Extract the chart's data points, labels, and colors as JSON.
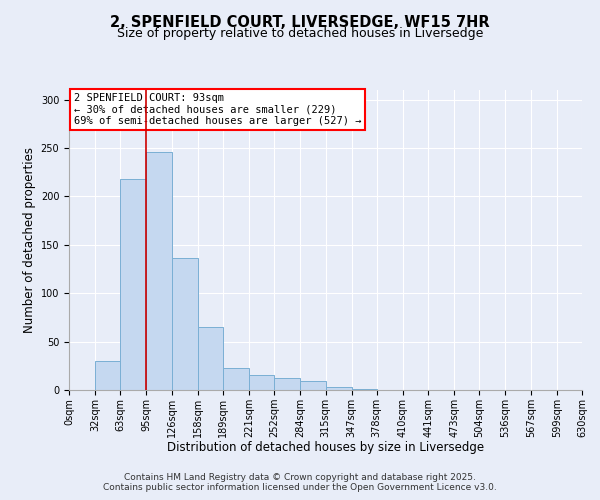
{
  "title": "2, SPENFIELD COURT, LIVERSEDGE, WF15 7HR",
  "subtitle": "Size of property relative to detached houses in Liversedge",
  "xlabel": "Distribution of detached houses by size in Liversedge",
  "ylabel": "Number of detached properties",
  "bar_edges": [
    0,
    32,
    63,
    95,
    126,
    158,
    189,
    221,
    252,
    284,
    315,
    347,
    378,
    410,
    441,
    473,
    504,
    536,
    567,
    599,
    630
  ],
  "bar_heights": [
    0,
    30,
    218,
    246,
    136,
    65,
    23,
    15,
    12,
    9,
    3,
    1,
    0,
    0,
    0,
    0,
    0,
    0,
    0,
    0
  ],
  "bar_color": "#c5d8f0",
  "bar_edge_color": "#7aafd4",
  "bar_linewidth": 0.7,
  "vline_x": 95,
  "vline_color": "#cc0000",
  "vline_linewidth": 1.2,
  "annotation_title": "2 SPENFIELD COURT: 93sqm",
  "annotation_line1": "← 30% of detached houses are smaller (229)",
  "annotation_line2": "69% of semi-detached houses are larger (527) →",
  "ylim": [
    0,
    310
  ],
  "yticks": [
    0,
    50,
    100,
    150,
    200,
    250,
    300
  ],
  "xtick_labels": [
    "0sqm",
    "32sqm",
    "63sqm",
    "95sqm",
    "126sqm",
    "158sqm",
    "189sqm",
    "221sqm",
    "252sqm",
    "284sqm",
    "315sqm",
    "347sqm",
    "378sqm",
    "410sqm",
    "441sqm",
    "473sqm",
    "504sqm",
    "536sqm",
    "567sqm",
    "599sqm",
    "630sqm"
  ],
  "background_color": "#e8edf8",
  "grid_color": "#ffffff",
  "footer_line1": "Contains HM Land Registry data © Crown copyright and database right 2025.",
  "footer_line2": "Contains public sector information licensed under the Open Government Licence v3.0.",
  "title_fontsize": 10.5,
  "subtitle_fontsize": 9,
  "xlabel_fontsize": 8.5,
  "ylabel_fontsize": 8.5,
  "tick_fontsize": 7,
  "footer_fontsize": 6.5,
  "annotation_fontsize": 7.5
}
